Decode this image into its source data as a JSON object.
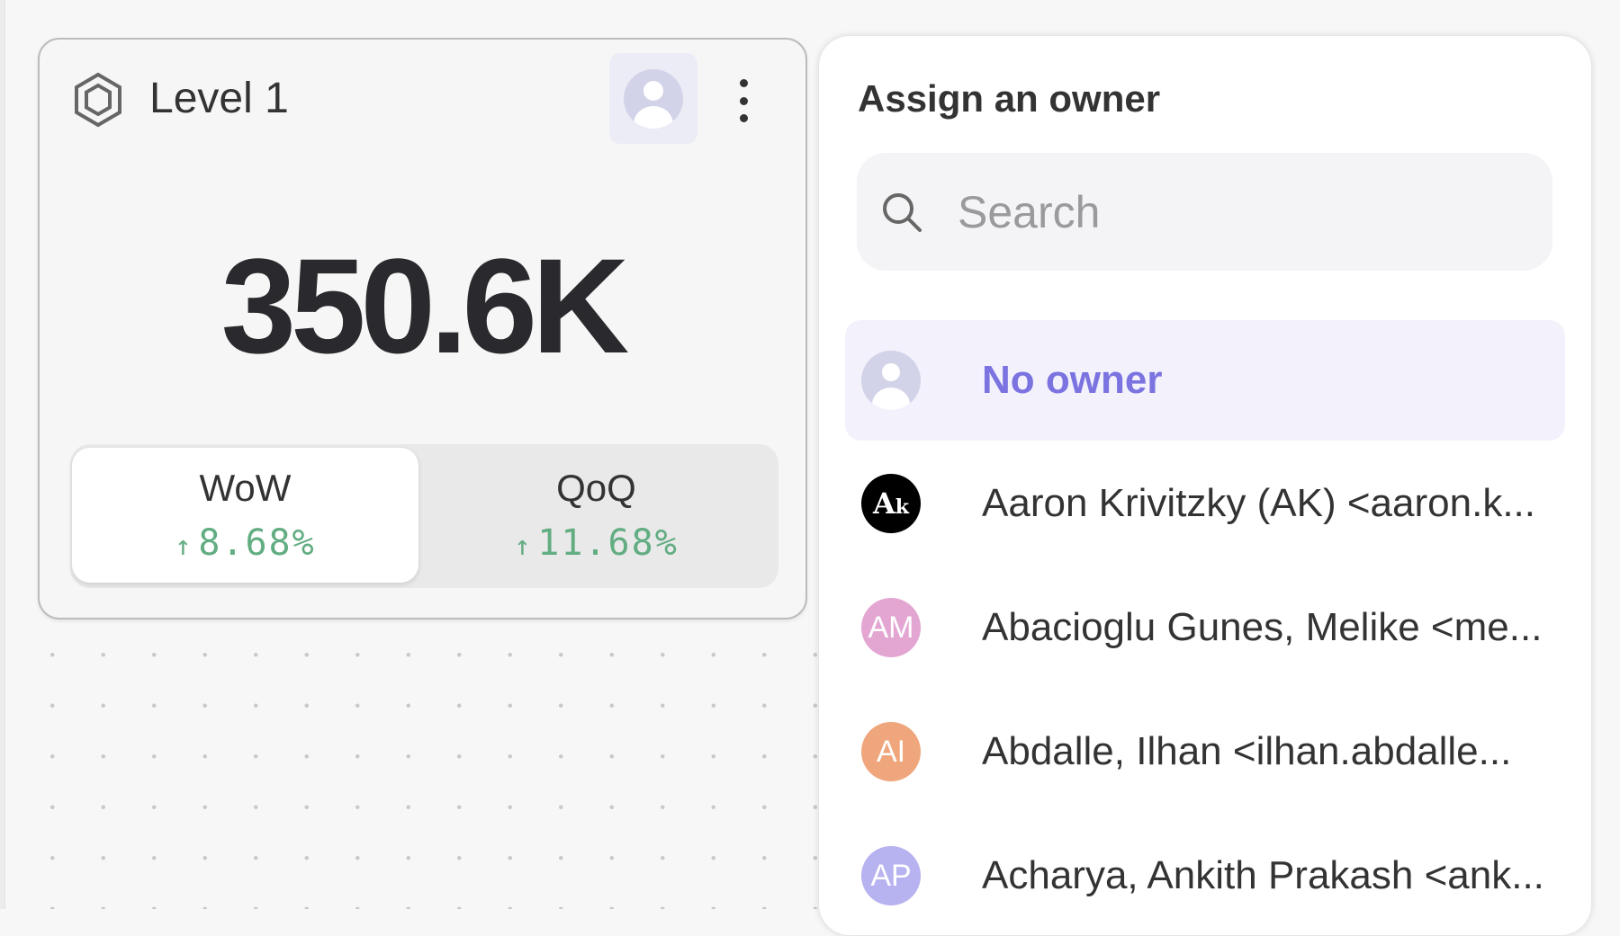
{
  "card": {
    "icon": "hexagon-icon",
    "title": "Level 1",
    "owner_icon": "user-avatar-icon",
    "menu_icon": "kebab-menu-icon",
    "value": "350.6K",
    "comparisons": [
      {
        "label": "WoW",
        "arrow": "↑",
        "value": "8.68%",
        "selected": true
      },
      {
        "label": "QoQ",
        "arrow": "↑",
        "value": "11.68%",
        "selected": false
      }
    ],
    "positive_color": "#62ad82"
  },
  "owner_panel": {
    "title": "Assign an owner",
    "search_placeholder": "Search",
    "search_value": "",
    "options": [
      {
        "initials": "",
        "name": "No owner",
        "selected": true,
        "color": "#d2d3e8"
      },
      {
        "initials": "Ak",
        "name": "Aaron Krivitzky (AK) <aaron.k...",
        "selected": false,
        "color": "#000000"
      },
      {
        "initials": "AM",
        "name": "Abacioglu Gunes, Melike <me...",
        "selected": false,
        "color": "#e3a6d3"
      },
      {
        "initials": "AI",
        "name": "Abdalle, Ilhan <ilhan.abdalle...",
        "selected": false,
        "color": "#f0a67c"
      },
      {
        "initials": "AP",
        "name": "Acharya, Ankith Prakash <ank...",
        "selected": false,
        "color": "#b7b2f0"
      }
    ],
    "accent_color": "#7b73e0"
  }
}
